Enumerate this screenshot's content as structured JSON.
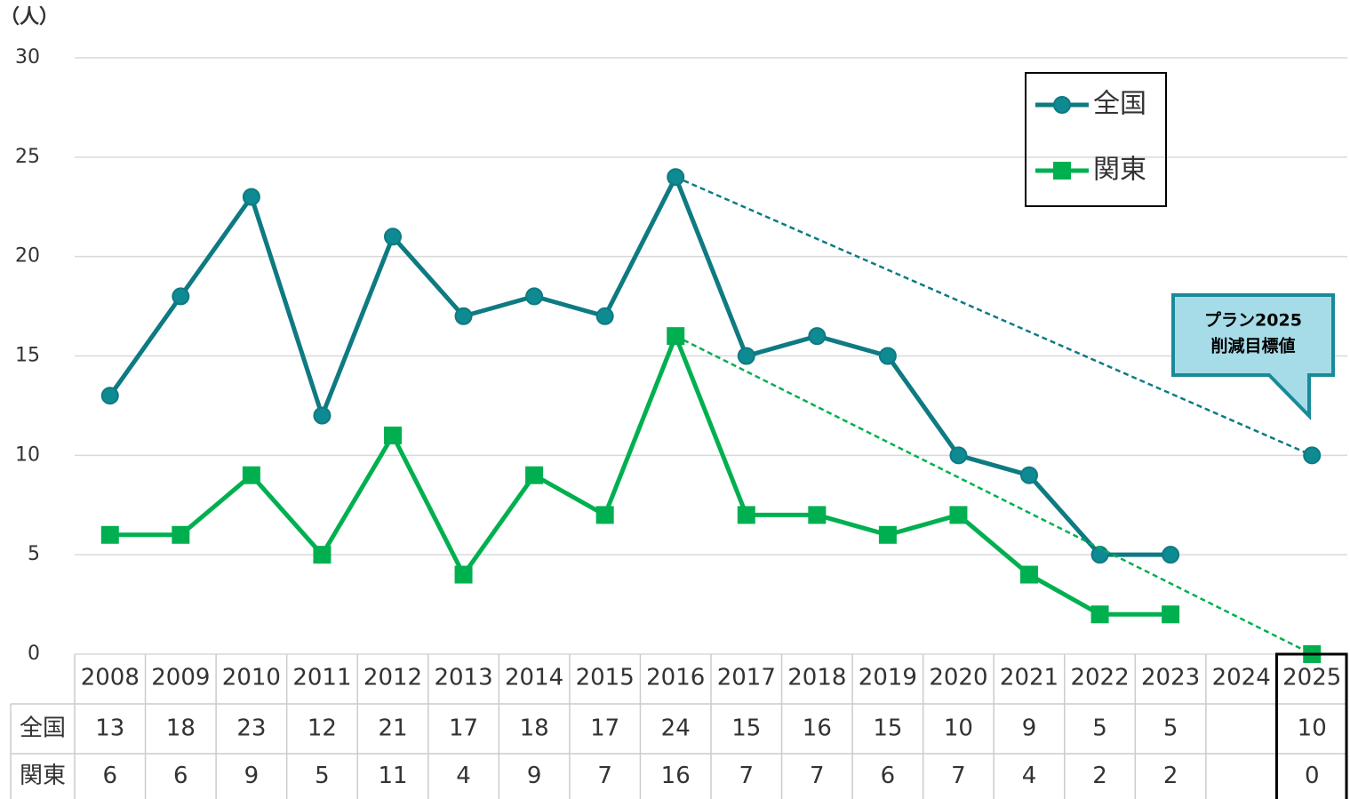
{
  "chart_data": {
    "type": "line",
    "y_label": "（人）",
    "categories": [
      "2008",
      "2009",
      "2010",
      "2011",
      "2012",
      "2013",
      "2014",
      "2015",
      "2016",
      "2017",
      "2018",
      "2019",
      "2020",
      "2021",
      "2022",
      "2023",
      "2024",
      "2025"
    ],
    "series": [
      {
        "name": "全国",
        "color": "#0e7a82",
        "values": [
          13,
          18,
          23,
          12,
          21,
          17,
          18,
          17,
          24,
          15,
          16,
          15,
          10,
          9,
          5,
          5,
          null,
          10
        ]
      },
      {
        "name": "関東",
        "color": "#00b050",
        "values": [
          6,
          6,
          9,
          5,
          11,
          4,
          9,
          7,
          16,
          7,
          7,
          6,
          7,
          4,
          2,
          2,
          null,
          0
        ]
      }
    ],
    "ylim": [
      0,
      30
    ],
    "yticks": [
      0,
      5,
      10,
      15,
      20,
      25,
      30
    ],
    "grid": true,
    "legend": "top-right",
    "annotation": [
      "プラン2025",
      "削減目標値"
    ]
  }
}
